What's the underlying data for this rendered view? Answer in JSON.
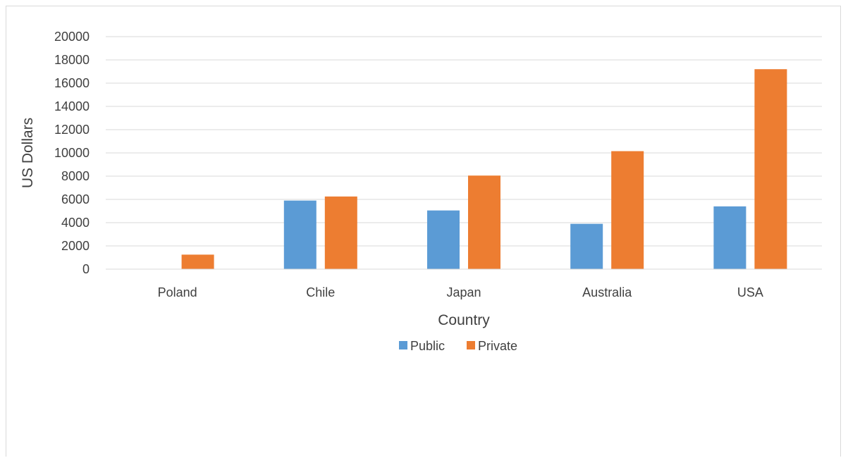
{
  "chart_data": {
    "type": "bar",
    "categories": [
      "Poland",
      "Chile",
      "Japan",
      "Australia",
      "USA"
    ],
    "series": [
      {
        "name": "Public",
        "values": [
          0,
          5900,
          5050,
          3900,
          5400
        ],
        "color": "#5b9bd5"
      },
      {
        "name": "Private",
        "values": [
          1250,
          6250,
          8050,
          10150,
          17200
        ],
        "color": "#ed7d31"
      }
    ],
    "xlabel": "Country",
    "ylabel": "US Dollars",
    "ylim": [
      0,
      20000
    ],
    "yticks": [
      "0",
      "2000",
      "4000",
      "6000",
      "8000",
      "10000",
      "12000",
      "14000",
      "16000",
      "18000",
      "20000"
    ],
    "grid": true,
    "legend_position": "bottom"
  }
}
